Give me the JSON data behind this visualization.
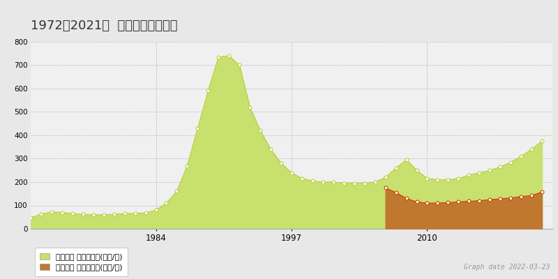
{
  "title": "1972～2021年  東京都の地価推移",
  "ylim": [
    0,
    800
  ],
  "yticks": [
    0,
    100,
    200,
    300,
    400,
    500,
    600,
    700,
    800
  ],
  "xlim_start": 1972,
  "xlim_end": 2022,
  "xticks": [
    1984,
    1997,
    2010
  ],
  "background_color": "#e8e8e8",
  "plot_bg_color": "#f0f0f0",
  "grid_color": "#bbbbbb",
  "title_fontsize": 13,
  "legend_label_kouchi": "地価公示 平均坪単価(万円/坪)",
  "legend_label_torihiki": "取引価格 平均坪単価(万円/坪)",
  "graph_date_text": "Graph date 2022-03-23",
  "kouchi_fill_color": "#c8e06e",
  "kouchi_line_color": "#b8d040",
  "torihiki_fill_color": "#c07830",
  "torihiki_line_color": "#cc4400",
  "kouchi_years": [
    1972,
    1973,
    1974,
    1975,
    1976,
    1977,
    1978,
    1979,
    1980,
    1981,
    1982,
    1983,
    1984,
    1985,
    1986,
    1987,
    1988,
    1989,
    1990,
    1991,
    1992,
    1993,
    1994,
    1995,
    1996,
    1997,
    1998,
    1999,
    2000,
    2001,
    2002,
    2003,
    2004,
    2005,
    2006,
    2007,
    2008,
    2009,
    2010,
    2011,
    2012,
    2013,
    2014,
    2015,
    2016,
    2017,
    2018,
    2019,
    2020,
    2021
  ],
  "kouchi_values": [
    48,
    62,
    72,
    70,
    65,
    62,
    60,
    60,
    62,
    65,
    66,
    68,
    80,
    110,
    160,
    270,
    430,
    590,
    735,
    740,
    700,
    520,
    420,
    340,
    280,
    240,
    215,
    205,
    200,
    200,
    195,
    195,
    195,
    200,
    220,
    260,
    295,
    250,
    215,
    210,
    210,
    215,
    230,
    240,
    250,
    265,
    285,
    310,
    340,
    375
  ],
  "torihiki_years": [
    2006,
    2007,
    2008,
    2009,
    2010,
    2011,
    2012,
    2013,
    2014,
    2015,
    2016,
    2017,
    2018,
    2019,
    2020,
    2021
  ],
  "torihiki_values": [
    175,
    155,
    130,
    115,
    110,
    110,
    112,
    115,
    118,
    120,
    125,
    128,
    132,
    138,
    142,
    158
  ]
}
